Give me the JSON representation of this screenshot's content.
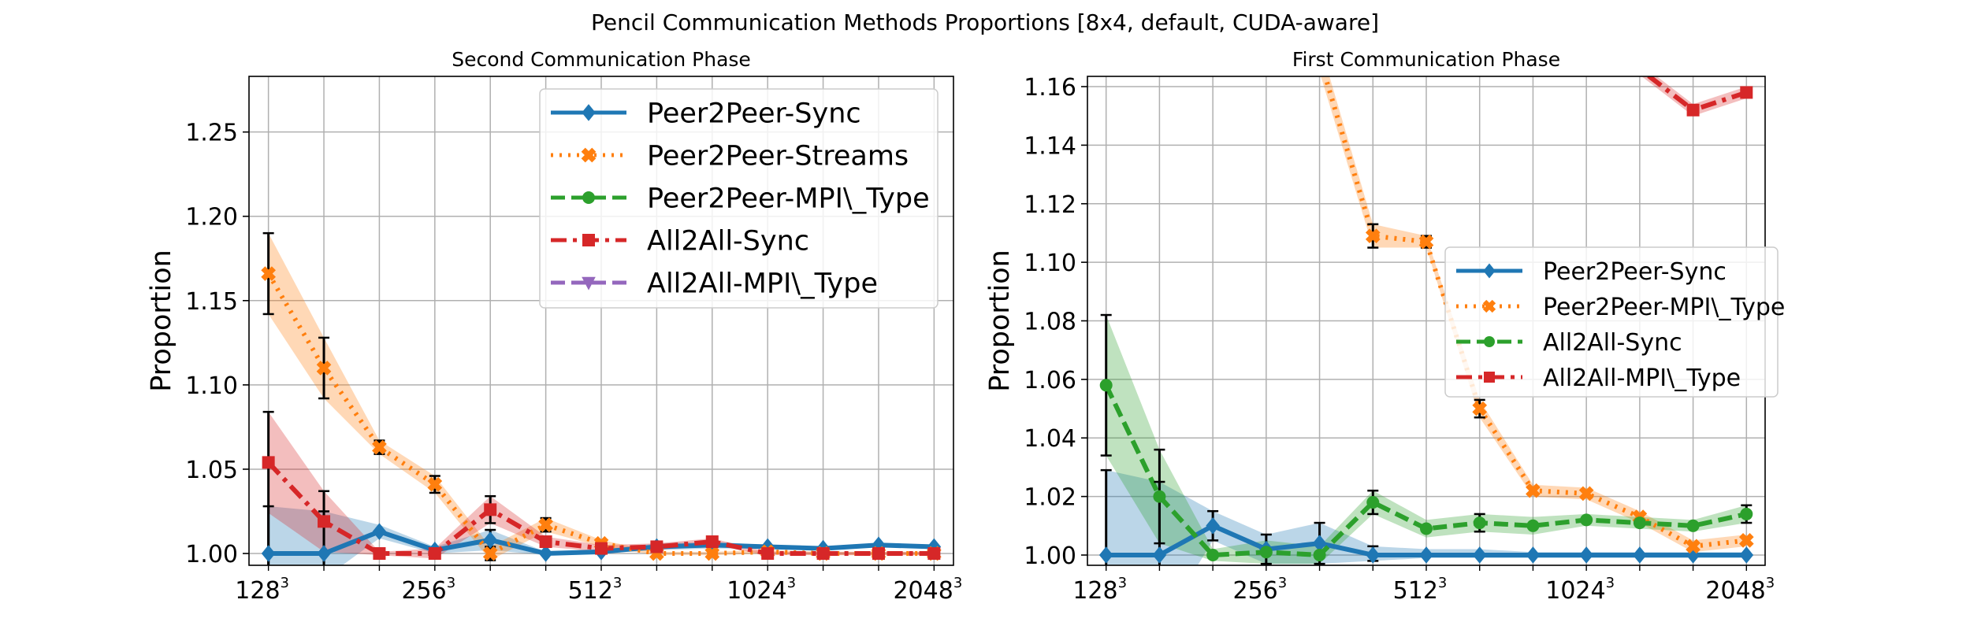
{
  "suptitle": "Pencil Communication Methods Proportions [8x4, default, CUDA-aware]",
  "chart_data": [
    {
      "type": "line",
      "title": "Second Communication Phase",
      "ylabel": "Proportion",
      "xlabel": "",
      "x_ticks": [
        {
          "base": "128",
          "exp": "3",
          "pos": 0
        },
        {
          "base": "256",
          "exp": "3",
          "pos": 3
        },
        {
          "base": "512",
          "exp": "3",
          "pos": 6
        },
        {
          "base": "1024",
          "exp": "3",
          "pos": 9
        },
        {
          "base": "2048",
          "exp": "3",
          "pos": 12
        }
      ],
      "y_ticks": [
        "1.00",
        "1.05",
        "1.10",
        "1.15",
        "1.20",
        "1.25"
      ],
      "y_tick_values": [
        1.0,
        1.05,
        1.1,
        1.15,
        1.2,
        1.25
      ],
      "xlim": [
        -0.35,
        12.35
      ],
      "ylim": [
        0.993,
        1.283
      ],
      "legend": {
        "position": "upper-right",
        "fontsize": 35
      },
      "grid": true,
      "series": [
        {
          "name": "Peer2Peer-Sync",
          "color": "#1f77b4",
          "marker": "diamond",
          "dash": "solid",
          "x": [
            0,
            1,
            2,
            3,
            4,
            5,
            6,
            7,
            8,
            9,
            10,
            11,
            12
          ],
          "y": [
            1.0,
            1.0,
            1.013,
            1.002,
            1.008,
            1.0,
            1.001,
            1.004,
            1.005,
            1.004,
            1.003,
            1.005,
            1.004
          ],
          "band": [
            [
              0.985,
              1.028
            ],
            [
              0.985,
              1.025
            ],
            [
              1.009,
              1.017
            ],
            [
              1.0,
              1.004
            ],
            [
              1.002,
              1.014
            ],
            [
              0.999,
              1.001
            ],
            [
              1.0,
              1.002
            ],
            [
              1.002,
              1.006
            ],
            [
              1.003,
              1.007
            ],
            [
              1.003,
              1.005
            ],
            [
              1.002,
              1.004
            ],
            [
              1.004,
              1.006
            ],
            [
              1.003,
              1.005
            ]
          ],
          "err": [
            [
              0.985,
              1.028
            ],
            [
              0.985,
              1.025
            ],
            null,
            null,
            [
              1.002,
              1.014
            ],
            null,
            null,
            null,
            null,
            null,
            null,
            null,
            null
          ]
        },
        {
          "name": "Peer2Peer-Streams",
          "color": "#ff7f0e",
          "marker": "x",
          "dash": "dotted",
          "x": [
            0,
            1,
            2,
            3,
            4,
            5,
            6,
            7,
            8,
            9,
            10,
            11,
            12
          ],
          "y": [
            1.166,
            1.11,
            1.063,
            1.041,
            1.0,
            1.017,
            1.006,
            1.0,
            1.0,
            1.001,
            1.0,
            1.0,
            1.0
          ],
          "band": [
            [
              1.142,
              1.19
            ],
            [
              1.092,
              1.128
            ],
            [
              1.059,
              1.067
            ],
            [
              1.036,
              1.046
            ],
            [
              0.996,
              1.004
            ],
            [
              1.013,
              1.021
            ],
            [
              1.004,
              1.008
            ],
            [
              0.999,
              1.001
            ],
            [
              0.999,
              1.001
            ],
            [
              1.0,
              1.002
            ],
            [
              0.999,
              1.001
            ],
            [
              0.999,
              1.001
            ],
            [
              0.999,
              1.001
            ]
          ],
          "err": [
            [
              1.142,
              1.19
            ],
            [
              1.092,
              1.128
            ],
            [
              1.059,
              1.067
            ],
            [
              1.036,
              1.046
            ],
            [
              0.996,
              1.004
            ],
            [
              1.013,
              1.021
            ],
            null,
            null,
            null,
            null,
            null,
            null,
            null
          ]
        },
        {
          "name": "Peer2Peer-MPI\\_Type",
          "color": "#2ca02c",
          "marker": "circle",
          "dash": "dashed",
          "x": [],
          "y": []
        },
        {
          "name": "All2All-Sync",
          "color": "#d62728",
          "marker": "square",
          "dash": "dashdot",
          "x": [
            0,
            1,
            2,
            3,
            4,
            5,
            6,
            7,
            8,
            9,
            10,
            11,
            12
          ],
          "y": [
            1.054,
            1.019,
            1.0,
            1.0,
            1.026,
            1.007,
            1.003,
            1.004,
            1.007,
            1.0,
            1.0,
            1.0,
            1.0
          ],
          "band": [
            [
              1.024,
              1.084
            ],
            [
              1.001,
              1.037
            ],
            [
              0.999,
              1.001
            ],
            [
              0.997,
              1.003
            ],
            [
              1.018,
              1.034
            ],
            [
              1.004,
              1.01
            ],
            [
              1.001,
              1.005
            ],
            [
              1.002,
              1.006
            ],
            [
              1.005,
              1.009
            ],
            [
              0.999,
              1.001
            ],
            [
              0.999,
              1.001
            ],
            [
              0.999,
              1.001
            ],
            [
              0.999,
              1.001
            ]
          ],
          "err": [
            [
              0.985,
              1.084
            ],
            [
              0.985,
              1.037
            ],
            null,
            null,
            [
              1.018,
              1.034
            ],
            null,
            null,
            null,
            null,
            null,
            null,
            null,
            null
          ]
        },
        {
          "name": "All2All-MPI\\_Type",
          "color": "#9467bd",
          "marker": "triangle_down",
          "dash": "dashed",
          "x": [],
          "y": []
        }
      ]
    },
    {
      "type": "line",
      "title": "First Communication Phase",
      "ylabel": "Proportion",
      "xlabel": "",
      "x_ticks": [
        {
          "base": "128",
          "exp": "3",
          "pos": 0
        },
        {
          "base": "256",
          "exp": "3",
          "pos": 3
        },
        {
          "base": "512",
          "exp": "3",
          "pos": 6
        },
        {
          "base": "1024",
          "exp": "3",
          "pos": 9
        },
        {
          "base": "2048",
          "exp": "3",
          "pos": 12
        }
      ],
      "y_ticks": [
        "1.00",
        "1.02",
        "1.04",
        "1.06",
        "1.08",
        "1.10",
        "1.12",
        "1.14",
        "1.16"
      ],
      "y_tick_values": [
        1.0,
        1.02,
        1.04,
        1.06,
        1.08,
        1.1,
        1.12,
        1.14,
        1.16
      ],
      "xlim": [
        -0.35,
        12.35
      ],
      "ylim": [
        0.9965,
        1.1635
      ],
      "legend": {
        "position": "center-right",
        "fontsize": 30
      },
      "grid": true,
      "series": [
        {
          "name": "Peer2Peer-Sync",
          "color": "#1f77b4",
          "marker": "diamond",
          "dash": "solid",
          "x": [
            0,
            1,
            2,
            3,
            4,
            5,
            6,
            7,
            8,
            9,
            10,
            11,
            12
          ],
          "y": [
            1.0,
            1.0,
            1.01,
            1.002,
            1.004,
            1.0,
            1.0,
            1.0,
            1.0,
            1.0,
            1.0,
            1.0,
            1.0
          ],
          "band": [
            [
              0.975,
              1.029
            ],
            [
              0.975,
              1.025
            ],
            [
              1.005,
              1.015
            ],
            [
              0.997,
              1.007
            ],
            [
              0.997,
              1.011
            ],
            [
              0.998,
              1.003
            ],
            [
              0.999,
              1.002
            ],
            [
              0.999,
              1.002
            ],
            [
              0.999,
              1.001
            ],
            [
              0.999,
              1.001
            ],
            [
              0.999,
              1.001
            ],
            [
              0.999,
              1.001
            ],
            [
              0.999,
              1.001
            ]
          ],
          "err": [
            [
              0.975,
              1.029
            ],
            [
              0.975,
              1.025
            ],
            [
              1.005,
              1.015
            ],
            [
              0.997,
              1.007
            ],
            [
              0.997,
              1.011
            ],
            [
              0.998,
              1.003
            ],
            null,
            null,
            null,
            null,
            null,
            null,
            null
          ]
        },
        {
          "name": "Peer2Peer-MPI\\_Type",
          "color": "#ff7f0e",
          "marker": "x",
          "dash": "dotted",
          "x": [
            4,
            5,
            6,
            7,
            8,
            9,
            10,
            11,
            12
          ],
          "y": [
            1.17,
            1.109,
            1.107,
            1.05,
            1.022,
            1.021,
            1.013,
            1.003,
            1.005
          ],
          "band": [
            [
              1.165,
              1.175
            ],
            [
              1.105,
              1.113
            ],
            [
              1.105,
              1.109
            ],
            [
              1.047,
              1.053
            ],
            [
              1.02,
              1.024
            ],
            [
              1.019,
              1.023
            ],
            [
              1.011,
              1.015
            ],
            [
              1.001,
              1.005
            ],
            [
              1.003,
              1.007
            ]
          ],
          "err": [
            null,
            [
              1.105,
              1.113
            ],
            [
              1.105,
              1.109
            ],
            [
              1.047,
              1.053
            ],
            null,
            null,
            null,
            null,
            null
          ]
        },
        {
          "name": "All2All-Sync",
          "color": "#2ca02c",
          "marker": "circle",
          "dash": "dashed",
          "x": [
            0,
            1,
            2,
            3,
            4,
            5,
            6,
            7,
            8,
            9,
            10,
            11,
            12
          ],
          "y": [
            1.058,
            1.02,
            1.0,
            1.001,
            1.0,
            1.018,
            1.009,
            1.011,
            1.01,
            1.012,
            1.011,
            1.01,
            1.014
          ],
          "band": [
            [
              1.034,
              1.082
            ],
            [
              1.004,
              1.036
            ],
            [
              0.998,
              1.002
            ],
            [
              0.997,
              1.005
            ],
            [
              0.997,
              1.003
            ],
            [
              1.014,
              1.022
            ],
            [
              1.006,
              1.012
            ],
            [
              1.008,
              1.014
            ],
            [
              1.007,
              1.013
            ],
            [
              1.01,
              1.014
            ],
            [
              1.009,
              1.013
            ],
            [
              1.008,
              1.012
            ],
            [
              1.011,
              1.017
            ]
          ],
          "err": [
            [
              1.034,
              1.082
            ],
            [
              1.004,
              1.036
            ],
            null,
            null,
            null,
            [
              1.014,
              1.022
            ],
            null,
            [
              1.008,
              1.014
            ],
            null,
            null,
            null,
            null,
            [
              1.011,
              1.017
            ]
          ]
        },
        {
          "name": "All2All-MPI\\_Type",
          "color": "#d62728",
          "marker": "square",
          "dash": "dashdot",
          "x": [
            9,
            10,
            11,
            12
          ],
          "y": [
            1.167,
            1.166,
            1.152,
            1.158
          ],
          "band": [
            [
              1.165,
              1.169
            ],
            [
              1.164,
              1.168
            ],
            [
              1.15,
              1.154
            ],
            [
              1.156,
              1.16
            ]
          ],
          "err": [
            null,
            null,
            null,
            null
          ]
        }
      ]
    }
  ]
}
